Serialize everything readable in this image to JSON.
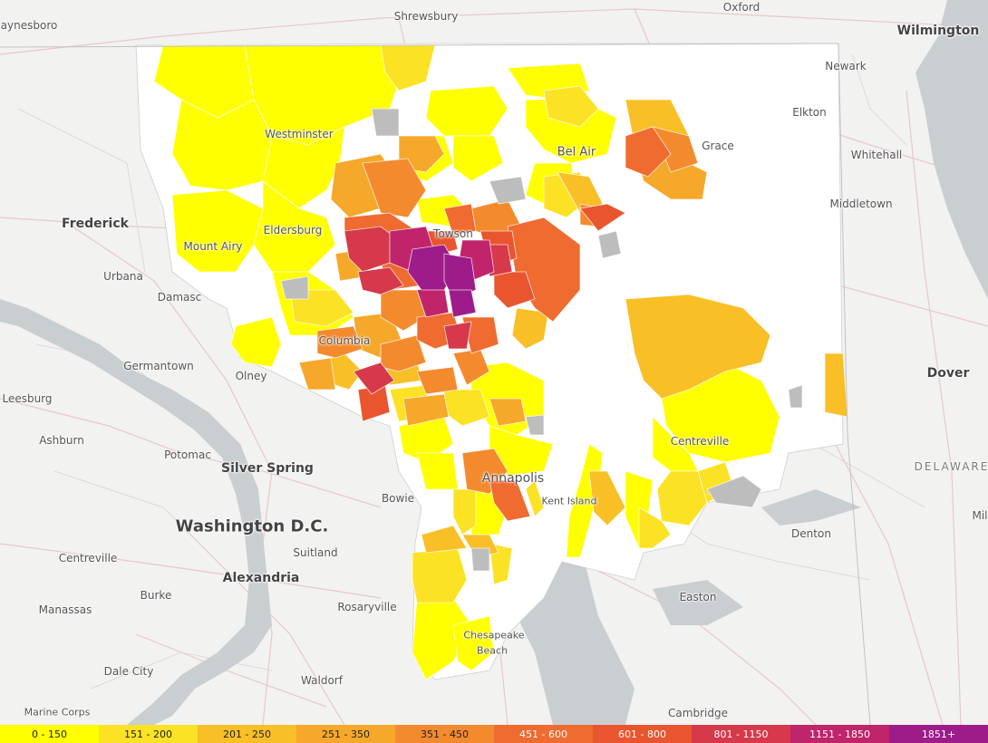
{
  "labels": [
    {
      "id": "waynesboro",
      "text": "aynesboro",
      "size": 12
    },
    {
      "id": "shrewsbury",
      "text": "Shrewsbury",
      "size": 12
    },
    {
      "id": "oxford",
      "text": "Oxford",
      "size": 12
    },
    {
      "id": "wilmington",
      "text": "Wilmington",
      "size": 14,
      "major": true
    },
    {
      "id": "newark",
      "text": "Newark",
      "size": 12
    },
    {
      "id": "elkton",
      "text": "Elkton",
      "size": 12
    },
    {
      "id": "grace",
      "text": "Grace",
      "size": 12
    },
    {
      "id": "whitehall",
      "text": "Whitehall",
      "size": 12
    },
    {
      "id": "bel-air",
      "text": "Bel Air",
      "size": 13
    },
    {
      "id": "middletown",
      "text": "Middletown",
      "size": 12
    },
    {
      "id": "frederick",
      "text": "Frederick",
      "size": 14,
      "major": true
    },
    {
      "id": "urbana",
      "text": "Urbana",
      "size": 12
    },
    {
      "id": "damascus",
      "text": "Damasc",
      "size": 12
    },
    {
      "id": "germantown",
      "text": "Germantown",
      "size": 12
    },
    {
      "id": "olney",
      "text": "Olney",
      "size": 12
    },
    {
      "id": "leesburg",
      "text": "Leesburg",
      "size": 12
    },
    {
      "id": "ashburn",
      "text": "Ashburn",
      "size": 12
    },
    {
      "id": "potomac",
      "text": "Potomac",
      "size": 12
    },
    {
      "id": "silver-spring",
      "text": "Silver Spring",
      "size": 14,
      "major": true
    },
    {
      "id": "washington",
      "text": "Washington D.C.",
      "size": 18,
      "major": true
    },
    {
      "id": "bowie",
      "text": "Bowie",
      "size": 12
    },
    {
      "id": "suitland",
      "text": "Suitland",
      "size": 12
    },
    {
      "id": "centreville-va",
      "text": "Centreville",
      "size": 12
    },
    {
      "id": "alexandria",
      "text": "Alexandria",
      "size": 14,
      "major": true
    },
    {
      "id": "burke",
      "text": "Burke",
      "size": 12
    },
    {
      "id": "manassas",
      "text": "Manassas",
      "size": 12
    },
    {
      "id": "rosaryville",
      "text": "Rosaryville",
      "size": 12
    },
    {
      "id": "dale-city",
      "text": "Dale City",
      "size": 12
    },
    {
      "id": "waldorf",
      "text": "Waldorf",
      "size": 12
    },
    {
      "id": "marine-corps",
      "text": "Marine Corps",
      "size": 11
    },
    {
      "id": "dover",
      "text": "Dover",
      "size": 14,
      "major": true
    },
    {
      "id": "delaware",
      "text": "DELAWARE",
      "size": 12,
      "state": true
    },
    {
      "id": "milford",
      "text": "Mil",
      "size": 12
    },
    {
      "id": "denton",
      "text": "Denton",
      "size": 12
    },
    {
      "id": "easton",
      "text": "Easton",
      "size": 12
    },
    {
      "id": "cambridge",
      "text": "Cambridge",
      "size": 12
    },
    {
      "id": "annapolis",
      "text": "Annapolis",
      "size": 14
    },
    {
      "id": "centreville-md",
      "text": "Centreville",
      "size": 12
    },
    {
      "id": "eldersburg",
      "text": "Eldersburg",
      "size": 12
    },
    {
      "id": "mount-airy",
      "text": "Mount Airy",
      "size": 12
    },
    {
      "id": "westminster",
      "text": "Westminster",
      "size": 12
    },
    {
      "id": "columbia",
      "text": "Columbia",
      "size": 12
    },
    {
      "id": "towson",
      "text": "Towson",
      "size": 12
    },
    {
      "id": "kent-island",
      "text": "Kent Island",
      "size": 11
    },
    {
      "id": "chesapeake-beach",
      "text": "Chesapeake",
      "size": 11
    },
    {
      "id": "beach",
      "text": "Beach",
      "size": 11
    }
  ],
  "legend": [
    {
      "label": "0 - 150",
      "color": "#ffff00"
    },
    {
      "label": "151 - 200",
      "color": "#fbe225"
    },
    {
      "label": "201 - 250",
      "color": "#f9bf27"
    },
    {
      "label": "251 - 350",
      "color": "#f6a82b"
    },
    {
      "label": "351 - 450",
      "color": "#f48a2e"
    },
    {
      "label": "451 - 600",
      "color": "#ef6b30"
    },
    {
      "label": "601 - 800",
      "color": "#e9552e"
    },
    {
      "label": "801 - 1150",
      "color": "#d6394a"
    },
    {
      "label": "1151 - 1850",
      "color": "#c0246a"
    },
    {
      "label": "1851+",
      "color": "#9d1c8a"
    }
  ]
}
